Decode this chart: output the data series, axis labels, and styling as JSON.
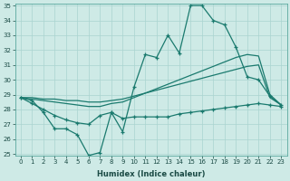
{
  "x": [
    0,
    1,
    2,
    3,
    4,
    5,
    6,
    7,
    8,
    9,
    10,
    11,
    12,
    13,
    14,
    15,
    16,
    17,
    18,
    19,
    20,
    21,
    22,
    23
  ],
  "line1": [
    28.8,
    28.6,
    27.8,
    26.7,
    26.7,
    26.3,
    24.9,
    25.1,
    27.8,
    26.5,
    29.5,
    31.7,
    31.5,
    33.0,
    31.8,
    35.0,
    35.0,
    34.0,
    33.7,
    32.2,
    30.2,
    30.0,
    28.9,
    28.3
  ],
  "line2": [
    28.8,
    28.4,
    28.0,
    27.6,
    27.3,
    27.1,
    27.0,
    27.6,
    27.8,
    27.4,
    27.5,
    27.5,
    27.5,
    27.5,
    27.7,
    27.8,
    27.9,
    28.0,
    28.1,
    28.2,
    28.3,
    28.4,
    28.3,
    28.2
  ],
  "line3": [
    28.8,
    28.7,
    28.6,
    28.5,
    28.4,
    28.3,
    28.2,
    28.2,
    28.4,
    28.5,
    28.8,
    29.1,
    29.4,
    29.7,
    30.0,
    30.3,
    30.6,
    30.9,
    31.2,
    31.5,
    31.7,
    31.6,
    29.0,
    28.3
  ],
  "line4": [
    28.8,
    28.8,
    28.7,
    28.7,
    28.6,
    28.6,
    28.5,
    28.5,
    28.6,
    28.7,
    28.9,
    29.1,
    29.3,
    29.5,
    29.7,
    29.9,
    30.1,
    30.3,
    30.5,
    30.7,
    30.9,
    31.0,
    28.8,
    28.3
  ],
  "ylim": [
    25,
    35
  ],
  "yticks": [
    25,
    26,
    27,
    28,
    29,
    30,
    31,
    32,
    33,
    34,
    35
  ],
  "xlim": [
    -0.5,
    23.5
  ],
  "xticks": [
    0,
    1,
    2,
    3,
    4,
    5,
    6,
    7,
    8,
    9,
    10,
    11,
    12,
    13,
    14,
    15,
    16,
    17,
    18,
    19,
    20,
    21,
    22,
    23
  ],
  "xlabel": "Humidex (Indice chaleur)",
  "line_color": "#1a7a6e",
  "bg_color": "#ceeae6",
  "grid_color": "#aad4d0"
}
